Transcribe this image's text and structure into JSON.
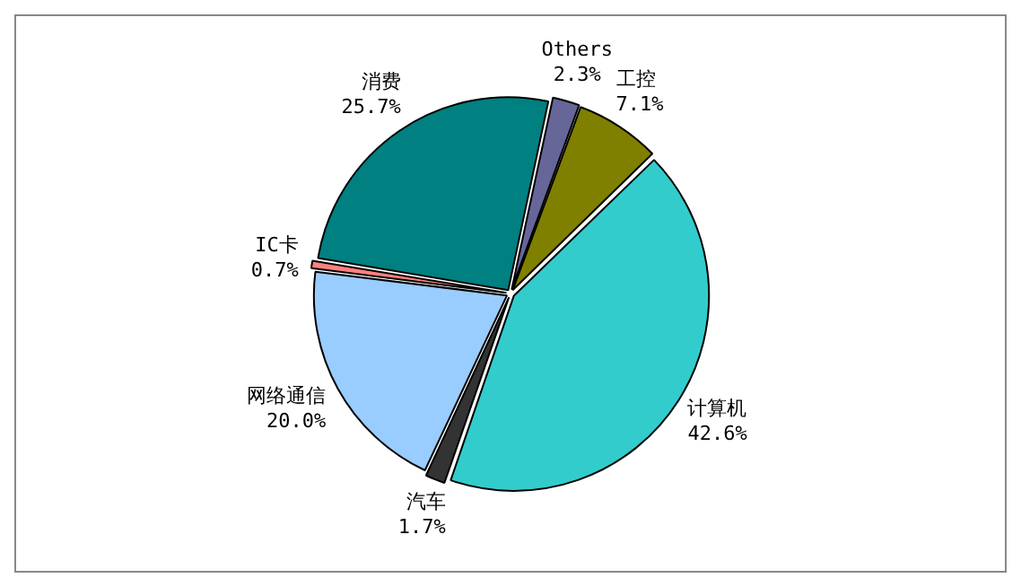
{
  "chart_data": {
    "type": "pie",
    "categories": [
      "Others",
      "工控",
      "计算机",
      "汽车",
      "网络通信",
      "IC卡",
      "消费"
    ],
    "values": [
      2.3,
      7.1,
      42.6,
      1.7,
      20.0,
      0.7,
      25.7
    ],
    "colors": [
      "#666699",
      "#808000",
      "#33cccc",
      "#333333",
      "#99ccff",
      "#ff8080",
      "#008080"
    ],
    "value_labels": [
      "2.3%",
      "7.1%",
      "42.6%",
      "1.7%",
      "20.0%",
      "0.7%",
      "25.7%"
    ],
    "legend": false
  }
}
